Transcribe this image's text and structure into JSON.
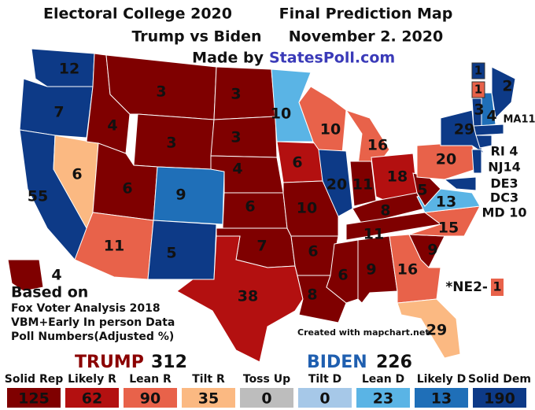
{
  "header": {
    "title_left": "Electoral College 2020",
    "title_right": "Final Prediction Map",
    "subtitle_left": "Trump vs Biden",
    "subtitle_right": "November 2. 2020",
    "made_by": "Made by",
    "site": "StatesPoll.com"
  },
  "states": [
    {
      "label": "12",
      "color": "#0d3a87"
    },
    {
      "label": "7",
      "color": "#0d3a87"
    },
    {
      "label": "55",
      "color": "#0d3a87"
    },
    {
      "label": "6",
      "color": "#fbb982"
    },
    {
      "label": "4",
      "color": "#7f0000"
    },
    {
      "label": "3",
      "color": "#7f0000"
    },
    {
      "label": "3",
      "color": "#7f0000"
    },
    {
      "label": "6",
      "color": "#7f0000"
    },
    {
      "label": "11",
      "color": "#e8624a"
    },
    {
      "label": "9",
      "color": "#1f6fb8"
    },
    {
      "label": "5",
      "color": "#0d3a87"
    },
    {
      "label": "3",
      "color": "#7f0000"
    },
    {
      "label": "3",
      "color": "#7f0000"
    },
    {
      "label": "4",
      "color": "#7f0000"
    },
    {
      "label": "6",
      "color": "#7f0000"
    },
    {
      "label": "7",
      "color": "#7f0000"
    },
    {
      "label": "38",
      "color": "#b31010"
    },
    {
      "label": "10",
      "color": "#5ab4e5"
    },
    {
      "label": "6",
      "color": "#b31010"
    },
    {
      "label": "10",
      "color": "#7f0000"
    },
    {
      "label": "6",
      "color": "#7f0000"
    },
    {
      "label": "8",
      "color": "#7f0000"
    },
    {
      "label": "10",
      "color": "#e8624a"
    },
    {
      "label": "20",
      "color": "#0d3a87"
    },
    {
      "label": "16",
      "color": "#e8624a"
    },
    {
      "label": "11",
      "color": "#7f0000"
    },
    {
      "label": "18",
      "color": "#b31010"
    },
    {
      "label": "8",
      "color": "#7f0000"
    },
    {
      "label": "11",
      "color": "#7f0000"
    },
    {
      "label": "6",
      "color": "#7f0000"
    },
    {
      "label": "9",
      "color": "#7f0000"
    },
    {
      "label": "16",
      "color": "#e8624a"
    },
    {
      "label": "29",
      "color": "#fbb982"
    },
    {
      "label": "9",
      "color": "#7f0000"
    },
    {
      "label": "15",
      "color": "#e8624a"
    },
    {
      "label": "13",
      "color": "#5ab4e5"
    },
    {
      "label": "5",
      "color": "#7f0000"
    },
    {
      "label": "20",
      "color": "#e8624a"
    },
    {
      "label": "29",
      "color": "#0d3a87"
    },
    {
      "label": "3",
      "color": "#0d3a87"
    },
    {
      "label": "4",
      "color": "#1f6fb8"
    },
    {
      "label": "2",
      "color": "#0d3a87"
    },
    {
      "label": "4",
      "color": "#7f0000"
    }
  ],
  "maine_districts": [
    {
      "label": "1",
      "color": "#0d3a87"
    },
    {
      "label": "1",
      "color": "#e8624a"
    }
  ],
  "east_labels": [
    "MA11",
    "RI 4",
    "NJ14",
    "DE3",
    "DC3",
    "MD 10"
  ],
  "ne2": {
    "label": "*NE2-",
    "value": "1",
    "color": "#e8624a"
  },
  "note": [
    "Based on",
    "Fox Voter Analysis 2018",
    "VBM+Early In person Data",
    "Poll Numbers(Adjusted %)"
  ],
  "credit": "Created with mapchart.net",
  "totals": {
    "trump": "TRUMP",
    "trump_total": 312,
    "biden": "BIDEN",
    "biden_total": 226
  },
  "legend": [
    {
      "name": "Solid Rep",
      "value": 125,
      "color": "#7f0000"
    },
    {
      "name": "Likely R",
      "value": 62,
      "color": "#b31010"
    },
    {
      "name": "Lean R",
      "value": 90,
      "color": "#e8624a"
    },
    {
      "name": "Tilt R",
      "value": 35,
      "color": "#fbb982"
    },
    {
      "name": "Toss Up",
      "value": 0,
      "color": "#bdbdbd"
    },
    {
      "name": "Tilt D",
      "value": 0,
      "color": "#a6c8e8"
    },
    {
      "name": "Lean D",
      "value": 23,
      "color": "#5ab4e5"
    },
    {
      "name": "Likely D",
      "value": 13,
      "color": "#1f6fb8"
    },
    {
      "name": "Solid Dem",
      "value": 190,
      "color": "#0d3a87"
    }
  ]
}
